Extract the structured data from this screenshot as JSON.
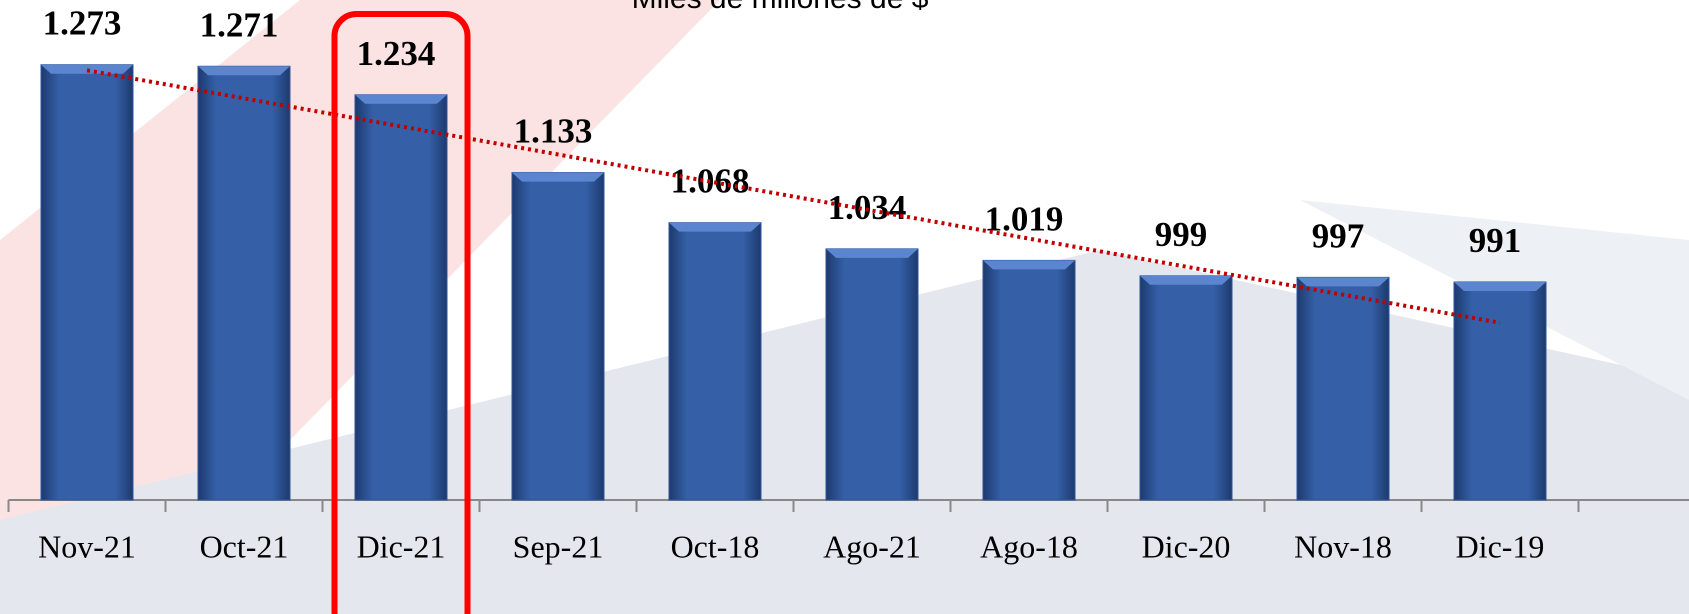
{
  "chart_data": {
    "type": "bar",
    "title": "Miles de millones de $",
    "categories": [
      "Nov-21",
      "Oct-21",
      "Dic-21",
      "Sep-21",
      "Oct-18",
      "Ago-21",
      "Ago-18",
      "Dic-20",
      "Nov-18",
      "Dic-19"
    ],
    "values": [
      1273,
      1271,
      1234,
      1133,
      1068,
      1034,
      1019,
      999,
      997,
      991
    ],
    "value_labels": [
      "1.273",
      "1.271",
      "1.234",
      "1.133",
      "1.068",
      "1.034",
      "1.019",
      "999",
      "997",
      "991"
    ],
    "color": "#2f5597",
    "ylim": [
      708,
      1357
    ],
    "trendline": true,
    "trendline_color": "#c00000",
    "highlight_index": 2,
    "highlight_color": "#ff0000"
  }
}
